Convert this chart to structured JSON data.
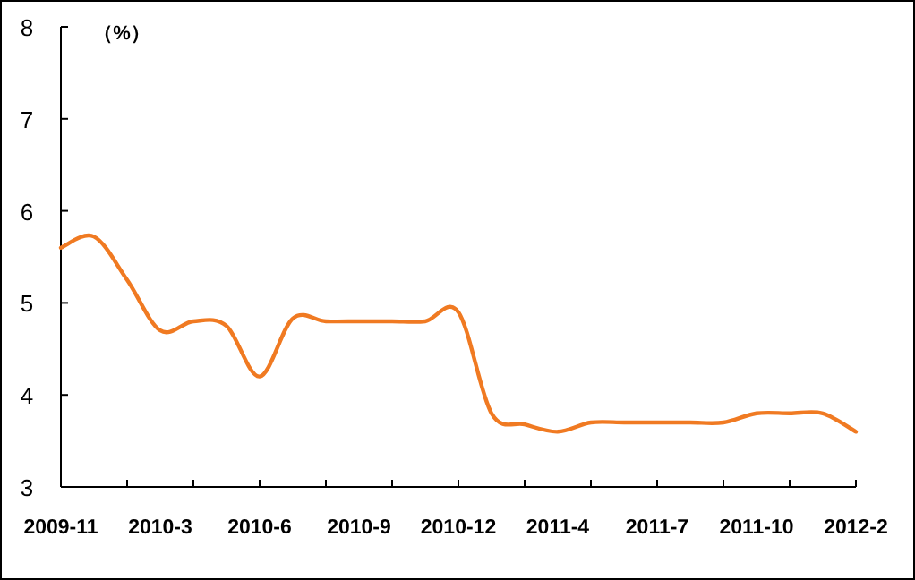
{
  "chart_data": {
    "type": "line",
    "ylabel": "（%）",
    "categories": [
      "2009-11",
      null,
      null,
      "2010-3",
      null,
      null,
      "2010-6",
      null,
      null,
      "2010-9",
      null,
      null,
      "2010-12",
      null,
      null,
      "2011-4",
      null,
      null,
      "2011-7",
      null,
      null,
      "2011-10",
      null,
      null,
      "2012-2"
    ],
    "series": [
      {
        "color": "#f07a22",
        "values": [
          5.6,
          5.72,
          5.25,
          4.7,
          4.8,
          4.75,
          4.2,
          4.83,
          4.8,
          4.8,
          4.8,
          4.8,
          4.9,
          3.8,
          3.68,
          3.6,
          3.7,
          3.7,
          3.7,
          3.7,
          3.7,
          3.8,
          3.8,
          3.8,
          3.6
        ]
      }
    ],
    "ylim": [
      3,
      8
    ],
    "yticks": [
      3,
      4,
      5,
      6,
      7,
      8
    ],
    "grid": false
  }
}
